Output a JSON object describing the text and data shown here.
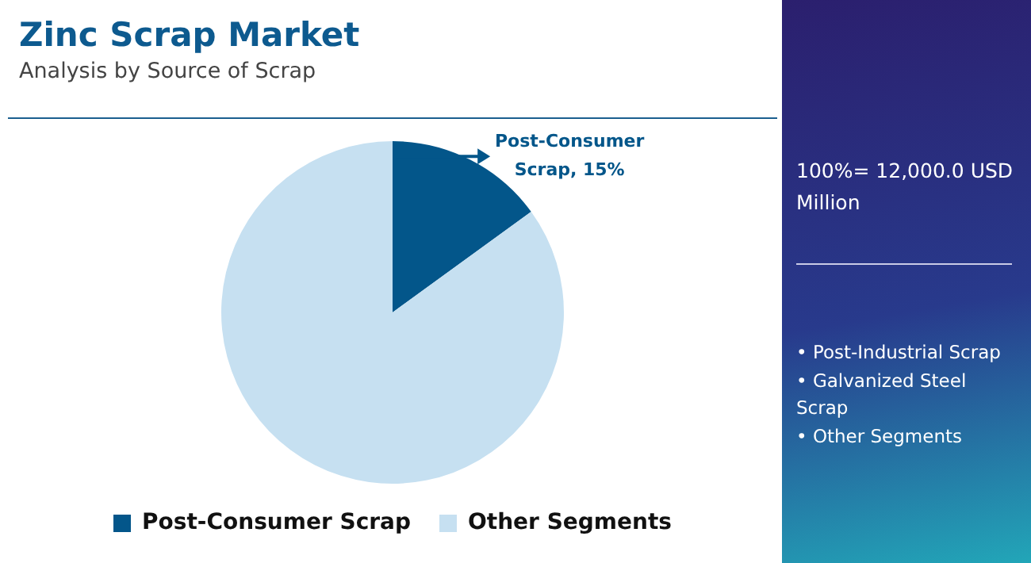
{
  "chart_data": {
    "type": "pie",
    "title": "Zinc Scrap Market",
    "subtitle": "Analysis by Source of Scrap",
    "categories": [
      "Post-Consumer Scrap",
      "Other Segments"
    ],
    "values": [
      15,
      85
    ],
    "colors": [
      "#03568a",
      "#c6e0f1"
    ],
    "value_labels": [
      "Post-Consumer Scrap, 15%",
      null
    ],
    "legend": "bottom",
    "annotations": [
      "100%= 12,000.0 USD Million",
      "• Post-Industrial Scrap",
      "• Galvanized Steel Scrap",
      "• Other Segments"
    ]
  }
}
